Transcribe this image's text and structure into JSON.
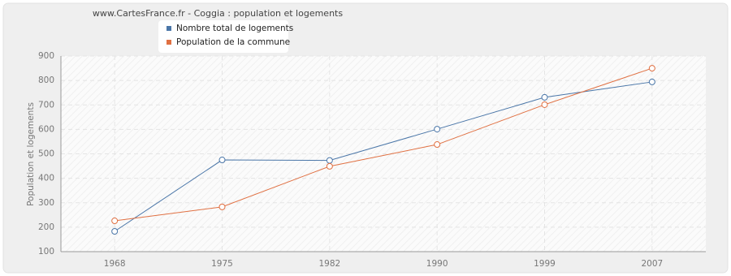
{
  "chart_data": {
    "type": "line",
    "title": "www.CartesFrance.fr - Coggia : population et logements",
    "y_label": "Population et logements",
    "categories": [
      "1968",
      "1975",
      "1982",
      "1990",
      "1999",
      "2007"
    ],
    "series": [
      {
        "name": "Nombre total de logements",
        "color": "#4a76a8",
        "values": [
          183,
          475,
          473,
          601,
          731,
          794
        ]
      },
      {
        "name": "Population de la commune",
        "color": "#e07042",
        "values": [
          226,
          283,
          449,
          538,
          701,
          850
        ]
      }
    ],
    "ylim": [
      100,
      900
    ],
    "yticks": [
      100,
      200,
      300,
      400,
      500,
      600,
      700,
      800,
      900
    ],
    "grid": true
  }
}
